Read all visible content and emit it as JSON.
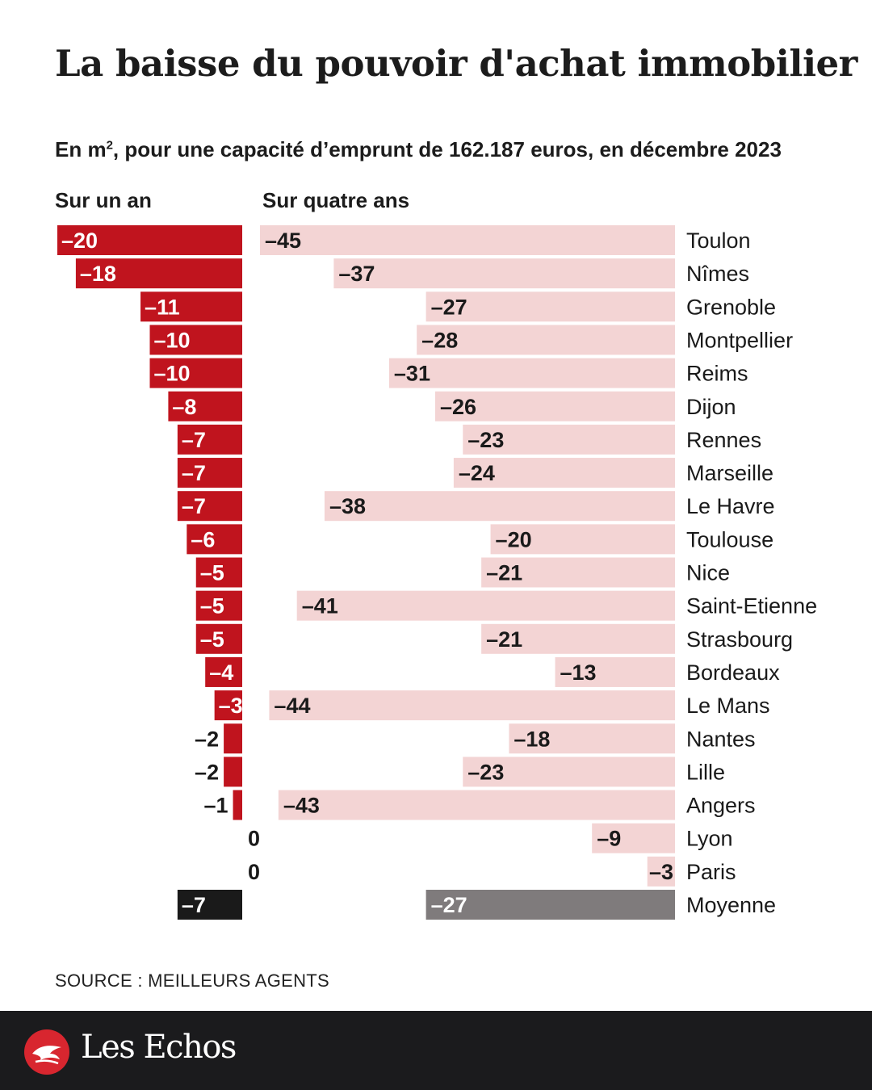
{
  "header": {
    "title": "La baisse du pouvoir d'achat immobilier",
    "subtitle_prefix": "En m",
    "subtitle_sup": "2",
    "subtitle_rest": ", pour une capacité d’emprunt de 162.187 euros, en décembre 2023"
  },
  "colors": {
    "one_year_bar": "#c0141e",
    "four_year_bar": "#f3d4d4",
    "avg_one_year_bar": "#1a1a1a",
    "avg_four_year_bar": "#7f7b7c",
    "footer_bg": "#1b1b1d",
    "brand_red": "#d8262f"
  },
  "chart_data": {
    "type": "bar",
    "title": "La baisse du pouvoir d'achat immobilier",
    "unit": "m²",
    "orientation": "horizontal",
    "categories": [
      "Toulon",
      "Nîmes",
      "Grenoble",
      "Montpellier",
      "Reims",
      "Dijon",
      "Rennes",
      "Marseille",
      "Le Havre",
      "Toulouse",
      "Nice",
      "Saint-Etienne",
      "Strasbourg",
      "Bordeaux",
      "Le Mans",
      "Nantes",
      "Lille",
      "Angers",
      "Lyon",
      "Paris",
      "Moyenne"
    ],
    "series": [
      {
        "name": "Sur un an",
        "values": [
          -20,
          -18,
          -11,
          -10,
          -10,
          -8,
          -7,
          -7,
          -7,
          -6,
          -5,
          -5,
          -5,
          -4,
          -3,
          -2,
          -2,
          -1,
          0,
          0,
          -7
        ],
        "labels": [
          "–20",
          "–18",
          "–11",
          "–10",
          "–10",
          "–8",
          "–7",
          "–7",
          "–7",
          "–6",
          "–5",
          "–5",
          "–5",
          "–4",
          "–3",
          "–2",
          "–2",
          "–1",
          "0",
          "0",
          "–7"
        ]
      },
      {
        "name": "Sur quatre ans",
        "values": [
          -45,
          -37,
          -27,
          -28,
          -31,
          -26,
          -23,
          -24,
          -38,
          -20,
          -21,
          -41,
          -21,
          -13,
          -44,
          -18,
          -23,
          -43,
          -9,
          -3,
          -27
        ],
        "labels": [
          "–45",
          "–37",
          "–27",
          "–28",
          "–31",
          "–26",
          "–23",
          "–24",
          "–38",
          "–20",
          "–21",
          "–41",
          "–21",
          "–13",
          "–44",
          "–18",
          "–23",
          "–43",
          "–9",
          "–3",
          "–27"
        ]
      }
    ],
    "highlight_category": "Moyenne",
    "xlim_one_year": [
      -20,
      0
    ],
    "xlim_four_years": [
      -45,
      0
    ]
  },
  "source": "SOURCE : MEILLEURS AGENTS",
  "footer": {
    "brand": "Les Echos",
    "logo_icon": "les-echos-logo-icon"
  }
}
